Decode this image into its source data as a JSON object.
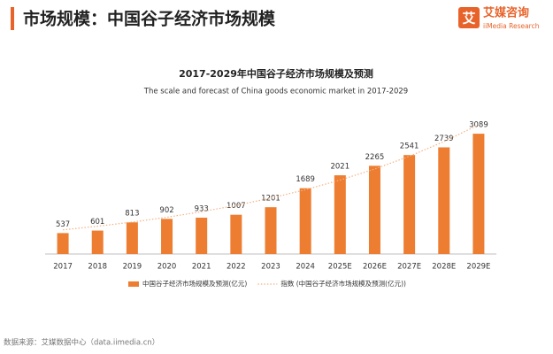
{
  "header": {
    "title": "市场规模：中国谷子经济市场规模"
  },
  "logo": {
    "name": "艾媒咨询",
    "mark": "艾",
    "sub": "iiMedia Research"
  },
  "chart_data": {
    "type": "bar",
    "title": "2017-2029年中国谷子经济市场规模及预测",
    "subtitle": "The scale and forecast of China goods economic market in 2017-2029",
    "categories": [
      "2017",
      "2018",
      "2019",
      "2020",
      "2021",
      "2022",
      "2023",
      "2024",
      "2025E",
      "2026E",
      "2027E",
      "2028E",
      "2029E"
    ],
    "series": [
      {
        "name": "中国谷子经济市场规模及预测(亿元)",
        "type": "bar",
        "color": "#ed7d31",
        "values": [
          537,
          601,
          813,
          902,
          933,
          1007,
          1201,
          1689,
          2021,
          2265,
          2541,
          2739,
          3089
        ]
      },
      {
        "name": "指数 (中国谷子经济市场规模及预测(亿元))",
        "type": "line",
        "color": "#f4b183",
        "values": [
          620,
          713,
          820,
          943,
          1085,
          1248,
          1435,
          1650,
          1898,
          2182,
          2510,
          2886,
          3320
        ]
      }
    ],
    "ylim": [
      0,
      3500
    ],
    "legend": "bottom"
  },
  "source": "数据来源：艾媒数据中心（data.iimedia.cn）"
}
